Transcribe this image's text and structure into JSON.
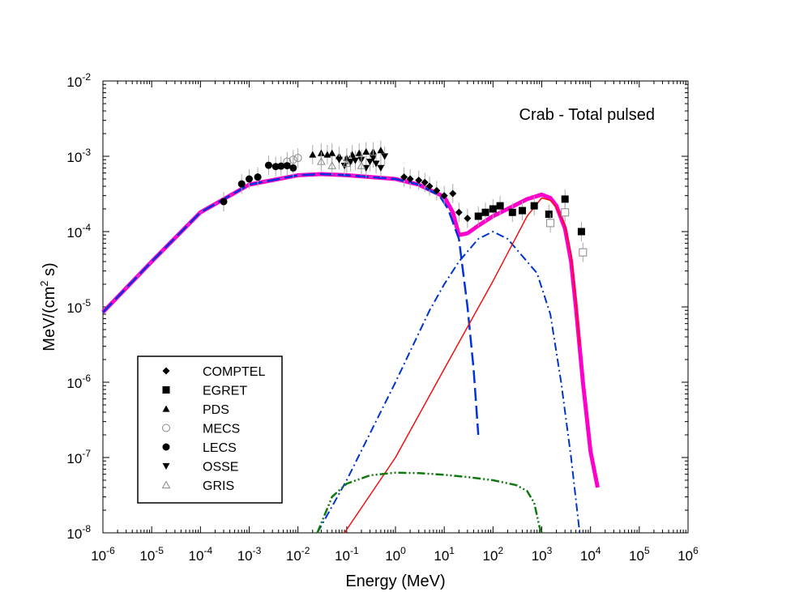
{
  "chart_data": {
    "type": "scatter",
    "title": "Crab - Total pulsed",
    "xlabel": "Energy (MeV)",
    "ylabel_main": "MeV/(cm",
    "ylabel_sup": "2",
    "ylabel_tail": " s)",
    "xscale": "log",
    "yscale": "log",
    "xlim": [
      1e-06,
      1000000.0
    ],
    "ylim": [
      1e-08,
      0.01
    ],
    "xticks": [
      {
        "base": "10",
        "exp": "-6",
        "value": 1e-06
      },
      {
        "base": "10",
        "exp": "-5",
        "value": 1e-05
      },
      {
        "base": "10",
        "exp": "-4",
        "value": 0.0001
      },
      {
        "base": "10",
        "exp": "-3",
        "value": 0.001
      },
      {
        "base": "10",
        "exp": "-2",
        "value": 0.01
      },
      {
        "base": "10",
        "exp": "-1",
        "value": 0.1
      },
      {
        "base": "10",
        "exp": "0",
        "value": 1
      },
      {
        "base": "10",
        "exp": "1",
        "value": 10
      },
      {
        "base": "10",
        "exp": "2",
        "value": 100
      },
      {
        "base": "10",
        "exp": "3",
        "value": 1000
      },
      {
        "base": "10",
        "exp": "4",
        "value": 10000
      },
      {
        "base": "10",
        "exp": "5",
        "value": 100000
      },
      {
        "base": "10",
        "exp": "6",
        "value": 1000000
      }
    ],
    "yticks": [
      {
        "base": "10",
        "exp": "-8",
        "value": 1e-08
      },
      {
        "base": "10",
        "exp": "-7",
        "value": 1e-07
      },
      {
        "base": "10",
        "exp": "-6",
        "value": 1e-06
      },
      {
        "base": "10",
        "exp": "-5",
        "value": 1e-05
      },
      {
        "base": "10",
        "exp": "-4",
        "value": 0.0001
      },
      {
        "base": "10",
        "exp": "-3",
        "value": 0.001
      },
      {
        "base": "10",
        "exp": "-2",
        "value": 0.01
      }
    ],
    "grid": false,
    "legend_position": "lower-left",
    "curves": [
      {
        "style": "solid-thick",
        "color": "#ff00cc",
        "points": [
          [
            1e-06,
            8.5e-06
          ],
          [
            1e-05,
            4e-05
          ],
          [
            0.0001,
            0.00018
          ],
          [
            0.001,
            0.00042
          ],
          [
            0.01,
            0.00056
          ],
          [
            0.03,
            0.00058
          ],
          [
            0.1,
            0.00056
          ],
          [
            1,
            0.0005
          ],
          [
            3,
            0.00042
          ],
          [
            10,
            0.00029
          ],
          [
            15,
            0.00018
          ],
          [
            20,
            9e-05
          ],
          [
            30,
            9.5e-05
          ],
          [
            50,
            0.00012
          ],
          [
            100,
            0.00016
          ],
          [
            200,
            0.0002
          ],
          [
            500,
            0.00027
          ],
          [
            1000,
            0.00031
          ],
          [
            1500,
            0.00028
          ],
          [
            2000,
            0.00022
          ],
          [
            3000,
            0.00011
          ],
          [
            4000,
            4e-05
          ],
          [
            5000,
            1e-05
          ],
          [
            7000,
            1e-06
          ],
          [
            10000,
            1.2e-07
          ],
          [
            14000,
            4e-08
          ]
        ]
      },
      {
        "style": "dashed-magenta",
        "color": "#cc33cc",
        "points": [
          [
            1e-06,
            8.5e-06
          ],
          [
            1e-05,
            4e-05
          ],
          [
            0.0001,
            0.00018
          ],
          [
            0.001,
            0.00042
          ],
          [
            0.01,
            0.00056
          ],
          [
            0.03,
            0.00058
          ],
          [
            0.1,
            0.00056
          ],
          [
            1,
            0.0005
          ],
          [
            3,
            0.00042
          ],
          [
            8,
            0.00032
          ]
        ]
      },
      {
        "style": "long-dash",
        "color": "#0033dd",
        "points": [
          [
            1e-06,
            8.5e-06
          ],
          [
            1e-05,
            4e-05
          ],
          [
            0.0001,
            0.00018
          ],
          [
            0.001,
            0.00042
          ],
          [
            0.01,
            0.00056
          ],
          [
            0.03,
            0.00058
          ],
          [
            0.1,
            0.00056
          ],
          [
            1,
            0.0005
          ],
          [
            3,
            0.00042
          ],
          [
            8,
            0.0003
          ],
          [
            12,
            0.0002
          ],
          [
            20,
            8e-05
          ],
          [
            30,
            1e-05
          ],
          [
            40,
            1.5e-06
          ],
          [
            50,
            2e-07
          ]
        ]
      },
      {
        "style": "dash-dot",
        "color": "#0033cc",
        "points": [
          [
            0.025,
            1e-08
          ],
          [
            0.1,
            5e-08
          ],
          [
            1,
            1e-06
          ],
          [
            5,
            9e-06
          ],
          [
            10,
            2e-05
          ],
          [
            20,
            4e-05
          ],
          [
            50,
            8e-05
          ],
          [
            100,
            0.0001
          ],
          [
            200,
            8e-05
          ],
          [
            500,
            4e-05
          ],
          [
            800,
            2.8e-05
          ],
          [
            1500,
            8e-06
          ],
          [
            2500,
            1e-06
          ],
          [
            4000,
            1e-07
          ],
          [
            6000,
            1e-08
          ]
        ]
      },
      {
        "style": "solid-thin",
        "color": "#ee1111",
        "points": [
          [
            0.09,
            1e-08
          ],
          [
            1,
            1e-07
          ],
          [
            10,
            1.5e-06
          ],
          [
            100,
            2.2e-05
          ],
          [
            500,
            0.00016
          ],
          [
            1000,
            0.00028
          ],
          [
            1500,
            0.00026
          ],
          [
            2000,
            0.00021
          ],
          [
            3000,
            0.00012
          ],
          [
            4000,
            5e-05
          ],
          [
            5000,
            1.2e-05
          ],
          [
            6000,
            3e-06
          ]
        ]
      },
      {
        "style": "dash-dot-dot",
        "color": "#117711",
        "points": [
          [
            0.025,
            1e-08
          ],
          [
            0.05,
            3e-08
          ],
          [
            0.1,
            4.5e-08
          ],
          [
            0.3,
            5.8e-08
          ],
          [
            1,
            6.3e-08
          ],
          [
            3,
            6.2e-08
          ],
          [
            10,
            5.9e-08
          ],
          [
            30,
            5.5e-08
          ],
          [
            100,
            5e-08
          ],
          [
            300,
            4.3e-08
          ],
          [
            500,
            3.6e-08
          ],
          [
            700,
            2.5e-08
          ],
          [
            900,
            1.2e-08
          ],
          [
            1000,
            1e-08
          ]
        ]
      }
    ],
    "series": [
      {
        "name": "COMPTEL",
        "marker": "diamond",
        "points": [
          [
            1.5,
            0.00053
          ],
          [
            2,
            0.0005
          ],
          [
            3,
            0.00048
          ],
          [
            4,
            0.00045
          ],
          [
            5,
            0.0004
          ],
          [
            7,
            0.00035
          ],
          [
            10,
            0.0003
          ],
          [
            15,
            0.00032
          ],
          [
            20,
            0.00018
          ],
          [
            30,
            0.00015
          ]
        ]
      },
      {
        "name": "EGRET",
        "marker": "square-filled",
        "points": [
          [
            50,
            0.00016
          ],
          [
            70,
            0.00018
          ],
          [
            100,
            0.0002
          ],
          [
            140,
            0.00022
          ],
          [
            250,
            0.00018
          ],
          [
            400,
            0.00019
          ],
          [
            700,
            0.00022
          ],
          [
            1400,
            0.00017
          ],
          [
            3000,
            0.00027
          ],
          [
            6500,
            0.0001
          ]
        ]
      },
      {
        "name": "EGRET-open",
        "marker": "square-open",
        "legend": false,
        "points": [
          [
            1500,
            0.00013
          ],
          [
            3000,
            0.00018
          ],
          [
            7000,
            5.3e-05
          ]
        ]
      },
      {
        "name": "PDS",
        "marker": "triangle-up-filled",
        "points": [
          [
            0.02,
            0.00105
          ],
          [
            0.03,
            0.0011
          ],
          [
            0.04,
            0.00105
          ],
          [
            0.05,
            0.0011
          ],
          [
            0.07,
            0.001
          ],
          [
            0.1,
            0.00095
          ],
          [
            0.13,
            0.00105
          ],
          [
            0.18,
            0.0011
          ],
          [
            0.25,
            0.00115
          ],
          [
            0.35,
            0.00115
          ],
          [
            0.5,
            0.0012
          ]
        ]
      },
      {
        "name": "MECS",
        "marker": "circle-open",
        "points": [
          [
            0.006,
            0.00085
          ],
          [
            0.008,
            0.0009
          ],
          [
            0.01,
            0.00095
          ]
        ]
      },
      {
        "name": "LECS",
        "marker": "circle-filled",
        "points": [
          [
            0.0003,
            0.00025
          ],
          [
            0.0007,
            0.00043
          ],
          [
            0.001,
            0.0005
          ],
          [
            0.0015,
            0.00053
          ],
          [
            0.0025,
            0.00076
          ],
          [
            0.0035,
            0.00073
          ],
          [
            0.0045,
            0.00074
          ],
          [
            0.006,
            0.00075
          ],
          [
            0.008,
            0.0007
          ]
        ]
      },
      {
        "name": "OSSE",
        "marker": "triangle-down-filled",
        "points": [
          [
            0.07,
            0.0009
          ],
          [
            0.09,
            0.00075
          ],
          [
            0.12,
            0.00085
          ],
          [
            0.15,
            0.00088
          ],
          [
            0.2,
            0.0009
          ],
          [
            0.25,
            0.0007
          ],
          [
            0.3,
            0.00085
          ],
          [
            0.35,
            0.00095
          ],
          [
            0.4,
            0.0008
          ],
          [
            0.5,
            0.0007
          ],
          [
            0.6,
            0.001
          ]
        ]
      },
      {
        "name": "GRIS",
        "marker": "triangle-up-open",
        "points": [
          [
            0.03,
            0.00085
          ],
          [
            0.05,
            0.00075
          ],
          [
            0.1,
            0.0008
          ],
          [
            0.2,
            0.00075
          ]
        ]
      }
    ]
  }
}
